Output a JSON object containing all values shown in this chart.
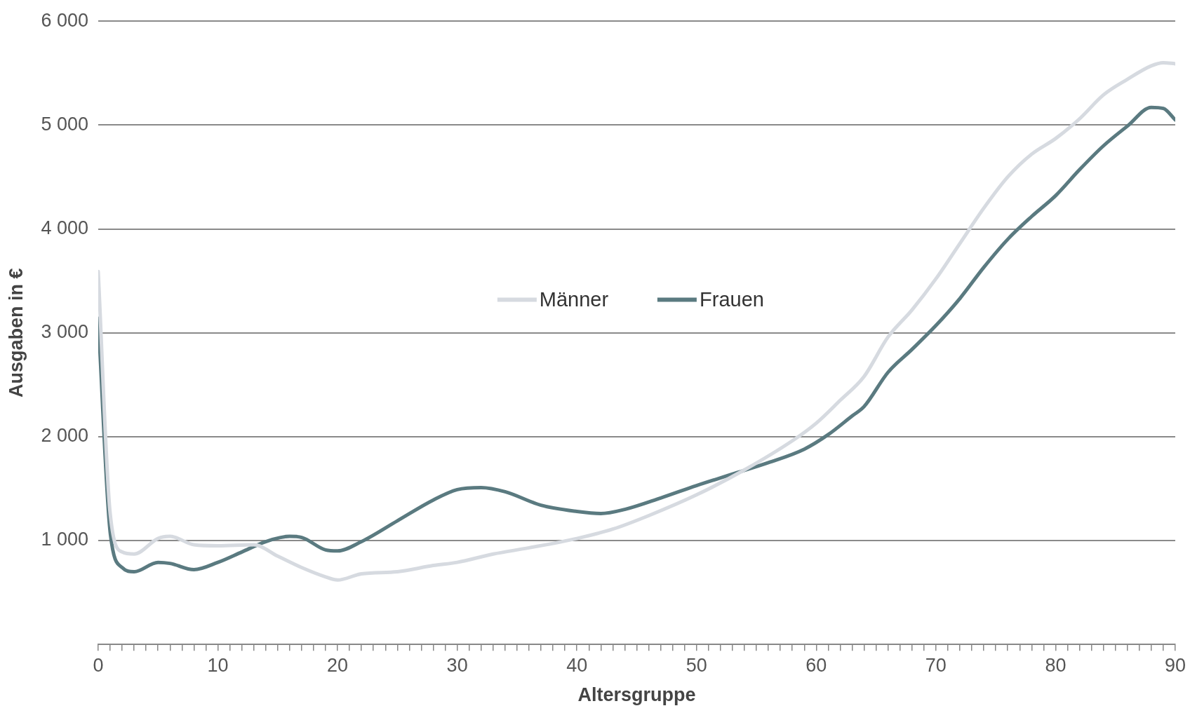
{
  "chart_data": {
    "type": "line",
    "xlabel": "Altersgruppe",
    "ylabel": "Ausgaben in €",
    "xlim": [
      0,
      90
    ],
    "xticks": [
      0,
      {
        "value": 1,
        "label": null
      },
      {
        "value": 2,
        "label": null
      },
      {
        "value": 3,
        "label": null
      },
      {
        "value": 4,
        "label": null
      },
      {
        "value": 5,
        "label": null
      },
      {
        "value": 6,
        "label": null
      },
      {
        "value": 7,
        "label": null
      },
      {
        "value": 8,
        "label": null
      },
      {
        "value": 9,
        "label": null
      },
      10,
      {
        "value": 11,
        "label": null
      },
      {
        "value": 12,
        "label": null
      },
      {
        "value": 13,
        "label": null
      },
      {
        "value": 14,
        "label": null
      },
      {
        "value": 15,
        "label": null
      },
      {
        "value": 16,
        "label": null
      },
      {
        "value": 17,
        "label": null
      },
      {
        "value": 18,
        "label": null
      },
      {
        "value": 19,
        "label": null
      },
      20,
      {
        "value": 21,
        "label": null
      },
      {
        "value": 22,
        "label": null
      },
      {
        "value": 23,
        "label": null
      },
      {
        "value": 24,
        "label": null
      },
      {
        "value": 25,
        "label": null
      },
      {
        "value": 26,
        "label": null
      },
      {
        "value": 27,
        "label": null
      },
      {
        "value": 28,
        "label": null
      },
      {
        "value": 29,
        "label": null
      },
      30,
      {
        "value": 31,
        "label": null
      },
      {
        "value": 32,
        "label": null
      },
      {
        "value": 33,
        "label": null
      },
      {
        "value": 34,
        "label": null
      },
      {
        "value": 35,
        "label": null
      },
      {
        "value": 36,
        "label": null
      },
      {
        "value": 37,
        "label": null
      },
      {
        "value": 38,
        "label": null
      },
      {
        "value": 39,
        "label": null
      },
      40,
      {
        "value": 41,
        "label": null
      },
      {
        "value": 42,
        "label": null
      },
      {
        "value": 43,
        "label": null
      },
      {
        "value": 44,
        "label": null
      },
      {
        "value": 45,
        "label": null
      },
      {
        "value": 46,
        "label": null
      },
      {
        "value": 47,
        "label": null
      },
      {
        "value": 48,
        "label": null
      },
      {
        "value": 49,
        "label": null
      },
      50,
      {
        "value": 51,
        "label": null
      },
      {
        "value": 52,
        "label": null
      },
      {
        "value": 53,
        "label": null
      },
      {
        "value": 54,
        "label": null
      },
      {
        "value": 55,
        "label": null
      },
      {
        "value": 56,
        "label": null
      },
      {
        "value": 57,
        "label": null
      },
      {
        "value": 58,
        "label": null
      },
      {
        "value": 59,
        "label": null
      },
      60,
      {
        "value": 61,
        "label": null
      },
      {
        "value": 62,
        "label": null
      },
      {
        "value": 63,
        "label": null
      },
      {
        "value": 64,
        "label": null
      },
      {
        "value": 65,
        "label": null
      },
      {
        "value": 66,
        "label": null
      },
      {
        "value": 67,
        "label": null
      },
      {
        "value": 68,
        "label": null
      },
      {
        "value": 69,
        "label": null
      },
      70,
      {
        "value": 71,
        "label": null
      },
      {
        "value": 72,
        "label": null
      },
      {
        "value": 73,
        "label": null
      },
      {
        "value": 74,
        "label": null
      },
      {
        "value": 75,
        "label": null
      },
      {
        "value": 76,
        "label": null
      },
      {
        "value": 77,
        "label": null
      },
      {
        "value": 78,
        "label": null
      },
      {
        "value": 79,
        "label": null
      },
      80,
      {
        "value": 81,
        "label": null
      },
      {
        "value": 82,
        "label": null
      },
      {
        "value": 83,
        "label": null
      },
      {
        "value": 84,
        "label": null
      },
      {
        "value": 85,
        "label": null
      },
      {
        "value": 86,
        "label": null
      },
      {
        "value": 87,
        "label": null
      },
      {
        "value": 88,
        "label": null
      },
      {
        "value": 89,
        "label": null
      },
      90
    ],
    "ylim": [
      0,
      6000
    ],
    "yticks": [
      {
        "value": 0,
        "label": null
      },
      {
        "value": 1000,
        "label": "1 000"
      },
      {
        "value": 2000,
        "label": "2 000"
      },
      {
        "value": 3000,
        "label": "3 000"
      },
      {
        "value": 4000,
        "label": "4 000"
      },
      {
        "value": 5000,
        "label": "5 000"
      },
      {
        "value": 6000,
        "label": "6 000"
      }
    ],
    "grid": "y",
    "legend": "center",
    "marker": "none",
    "line_style": "solid",
    "series": [
      {
        "name": "Männer",
        "color": "#d6dae0",
        "x": [
          0,
          1,
          2,
          3,
          5,
          6,
          8,
          10,
          13,
          15,
          17,
          19,
          20,
          22,
          25,
          28,
          30,
          33,
          36,
          40,
          43,
          46,
          50,
          54,
          58,
          60,
          62,
          64,
          66,
          68,
          70,
          72,
          74,
          76,
          78,
          80,
          82,
          84,
          86,
          88,
          89,
          90
        ],
        "values": [
          3590,
          1260,
          890,
          870,
          1020,
          1040,
          960,
          950,
          960,
          850,
          740,
          650,
          620,
          680,
          700,
          760,
          790,
          870,
          930,
          1020,
          1110,
          1240,
          1440,
          1680,
          1960,
          2130,
          2350,
          2580,
          2960,
          3220,
          3520,
          3860,
          4200,
          4500,
          4720,
          4870,
          5060,
          5290,
          5440,
          5570,
          5600,
          5590
        ]
      },
      {
        "name": "Frauen",
        "color": "#5a7a80",
        "x": [
          0,
          1,
          2,
          3,
          5,
          6,
          8,
          10,
          12,
          14,
          16,
          17,
          19,
          20,
          22,
          25,
          28,
          30,
          32,
          34,
          37,
          40,
          42,
          44,
          47,
          50,
          53,
          56,
          59,
          61,
          63,
          64,
          66,
          68,
          70,
          72,
          74,
          76,
          78,
          80,
          82,
          84,
          86,
          88,
          89,
          90
        ],
        "values": [
          3140,
          1080,
          740,
          700,
          790,
          780,
          720,
          790,
          890,
          990,
          1040,
          1030,
          910,
          900,
          990,
          1190,
          1390,
          1490,
          1510,
          1470,
          1340,
          1280,
          1260,
          1300,
          1410,
          1530,
          1640,
          1750,
          1880,
          2020,
          2200,
          2290,
          2620,
          2840,
          3070,
          3330,
          3630,
          3900,
          4120,
          4320,
          4570,
          4800,
          4990,
          5170,
          5160,
          5050
        ]
      }
    ]
  }
}
